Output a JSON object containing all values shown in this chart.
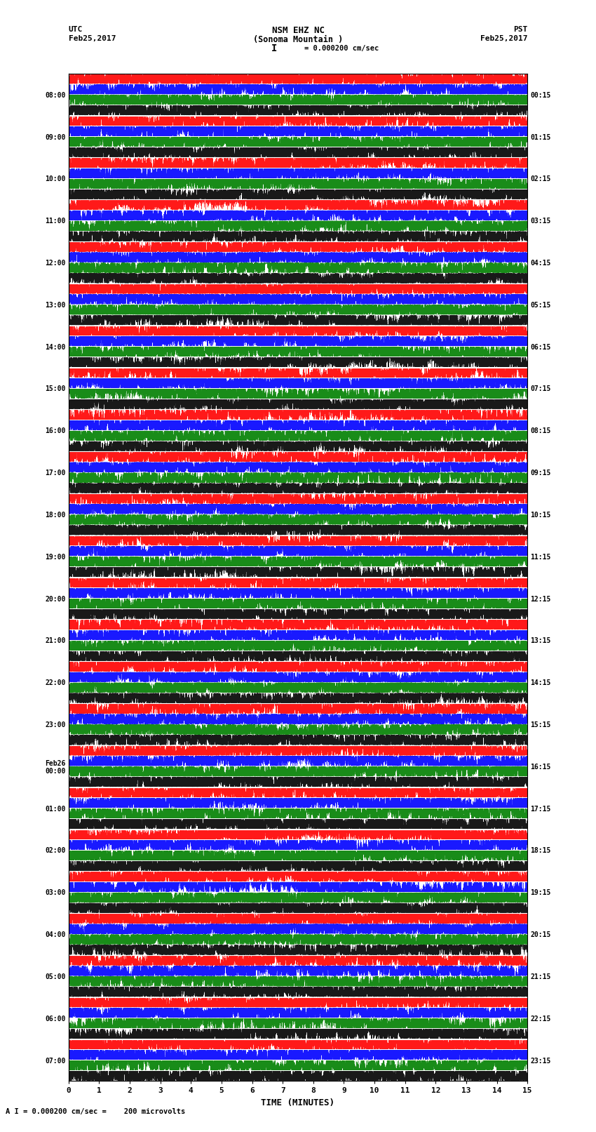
{
  "title_line1": "NSM EHZ NC",
  "title_line2": "(Sonoma Mountain )",
  "title_line3": "I = 0.000200 cm/sec",
  "utc_label": "UTC",
  "utc_date": "Feb25,2017",
  "pst_label": "PST",
  "pst_date": "Feb25,2017",
  "xlabel": "TIME (MINUTES)",
  "footer": "A I = 0.000200 cm/sec =    200 microvolts",
  "left_times": [
    "08:00",
    "09:00",
    "10:00",
    "11:00",
    "12:00",
    "13:00",
    "14:00",
    "15:00",
    "16:00",
    "17:00",
    "18:00",
    "19:00",
    "20:00",
    "21:00",
    "22:00",
    "23:00",
    "Feb26\n00:00",
    "01:00",
    "02:00",
    "03:00",
    "04:00",
    "05:00",
    "06:00",
    "07:00"
  ],
  "right_times": [
    "00:15",
    "01:15",
    "02:15",
    "03:15",
    "04:15",
    "05:15",
    "06:15",
    "07:15",
    "08:15",
    "09:15",
    "10:15",
    "11:15",
    "12:15",
    "13:15",
    "14:15",
    "15:15",
    "16:15",
    "17:15",
    "18:15",
    "19:15",
    "20:15",
    "21:15",
    "22:15",
    "23:15"
  ],
  "num_traces": 24,
  "trace_colors": [
    "red",
    "blue",
    "green",
    "black"
  ],
  "bg_color": "white",
  "xlim": [
    0,
    15
  ],
  "xticks": [
    0,
    1,
    2,
    3,
    4,
    5,
    6,
    7,
    8,
    9,
    10,
    11,
    12,
    13,
    14,
    15
  ],
  "seed": 42,
  "fig_width": 8.5,
  "fig_height": 16.13,
  "dpi": 100
}
